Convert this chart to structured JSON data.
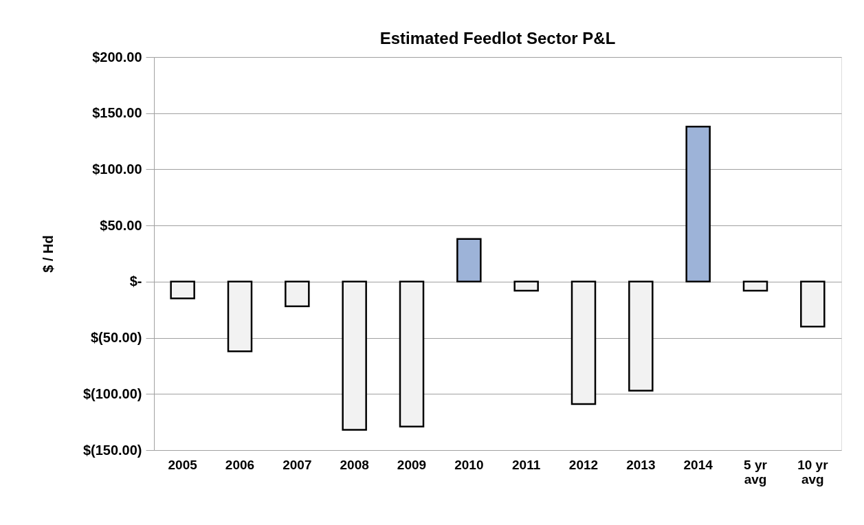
{
  "chart_data": {
    "type": "bar",
    "title": "Estimated Feedlot Sector P&L",
    "ylabel": "$ / Hd",
    "categories": [
      "2005",
      "2006",
      "2007",
      "2008",
      "2009",
      "2010",
      "2011",
      "2012",
      "2013",
      "2014",
      "5 yr avg",
      "10 yr avg"
    ],
    "values": [
      -15,
      -62,
      -22,
      -132,
      -129,
      38,
      -8,
      -109,
      -97,
      138,
      -8,
      -40
    ],
    "colors": [
      "#f2f2f2",
      "#f2f2f2",
      "#f2f2f2",
      "#f2f2f2",
      "#f2f2f2",
      "#9db3d8",
      "#f2f2f2",
      "#f2f2f2",
      "#f2f2f2",
      "#9db3d8",
      "#f2f2f2",
      "#f2f2f2"
    ],
    "ylim": [
      -150,
      200
    ],
    "yticks": [
      {
        "value": -150,
        "label": "$(150.00)"
      },
      {
        "value": -100,
        "label": "$(100.00)"
      },
      {
        "value": -50,
        "label": "$(50.00)"
      },
      {
        "value": 0,
        "label": "$-"
      },
      {
        "value": 50,
        "label": "$50.00"
      },
      {
        "value": 100,
        "label": "$100.00"
      },
      {
        "value": 150,
        "label": "$150.00"
      },
      {
        "value": 200,
        "label": "$200.00"
      }
    ],
    "grid": "y"
  }
}
